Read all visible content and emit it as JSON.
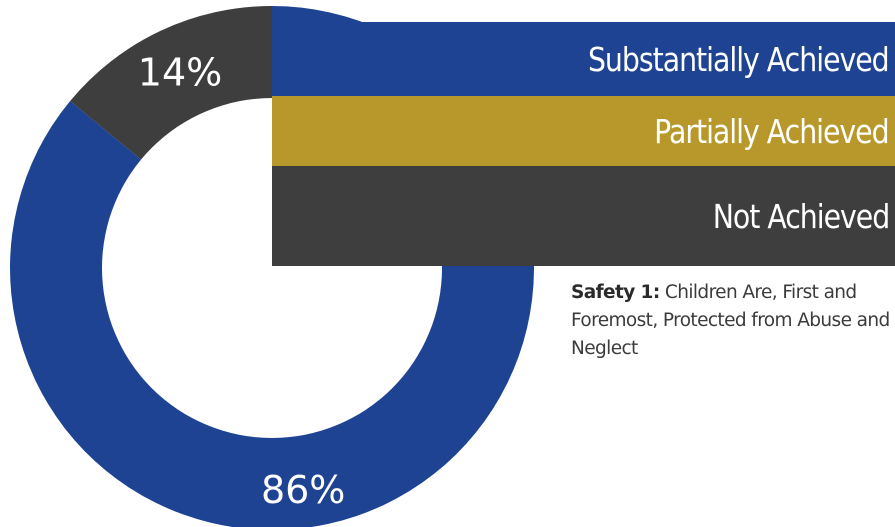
{
  "colors": {
    "substantially": "#1f4393",
    "partially": "#b8982a",
    "not": "#3e3e3e"
  },
  "legend": [
    {
      "label": "Substantially Achieved",
      "color": "#1f4393"
    },
    {
      "label": "Partially Achieved",
      "color": "#b8982a"
    },
    {
      "label": "Not Achieved",
      "color": "#3e3e3e"
    }
  ],
  "caption": {
    "bold": "Safety 1:",
    "text": " Children Are, First and Foremost, Protected from Abuse and Neglect"
  },
  "chart_data": {
    "type": "pie",
    "donut": true,
    "categories": [
      "Substantially Achieved",
      "Partially Achieved",
      "Not Achieved"
    ],
    "values": [
      86,
      0,
      14
    ],
    "labels": [
      "86%",
      "",
      "14%"
    ],
    "colors": [
      "#1f4393",
      "#b8982a",
      "#3e3e3e"
    ],
    "title": "",
    "legend": "right"
  }
}
